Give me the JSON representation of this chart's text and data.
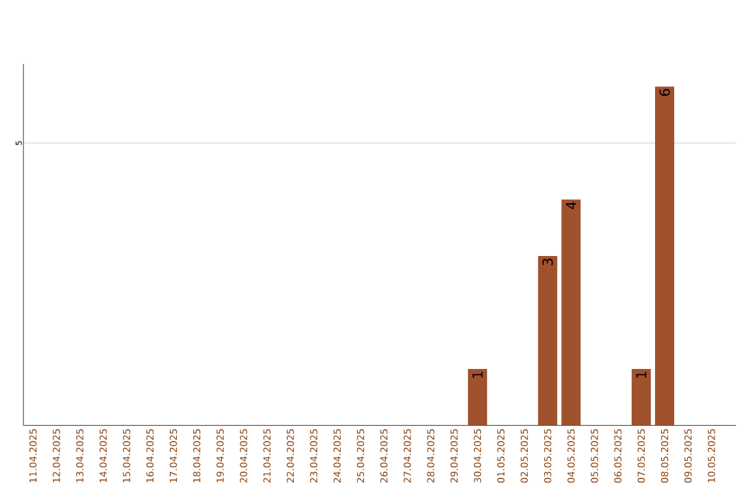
{
  "chart_data": {
    "type": "bar",
    "categories": [
      "11.04.2025",
      "12.04.2025",
      "13.04.2025",
      "14.04.2025",
      "15.04.2025",
      "16.04.2025",
      "17.04.2025",
      "18.04.2025",
      "19.04.2025",
      "20.04.2025",
      "21.04.2025",
      "22.04.2025",
      "23.04.2025",
      "24.04.2025",
      "25.04.2025",
      "26.04.2025",
      "27.04.2025",
      "28.04.2025",
      "29.04.2025",
      "30.04.2025",
      "01.05.2025",
      "02.05.2025",
      "03.05.2025",
      "04.05.2025",
      "05.05.2025",
      "06.05.2025",
      "07.05.2025",
      "08.05.2025",
      "09.05.2025",
      "10.05.2025"
    ],
    "values": [
      null,
      null,
      null,
      null,
      null,
      null,
      null,
      null,
      null,
      null,
      null,
      null,
      null,
      null,
      null,
      null,
      null,
      null,
      null,
      1,
      null,
      null,
      3,
      4,
      null,
      null,
      1,
      6,
      null,
      null
    ],
    "color": "#a0522d",
    "ylim": [
      0,
      6.4
    ],
    "yticks": [
      5
    ],
    "grid": "y",
    "data_labels": true
  }
}
